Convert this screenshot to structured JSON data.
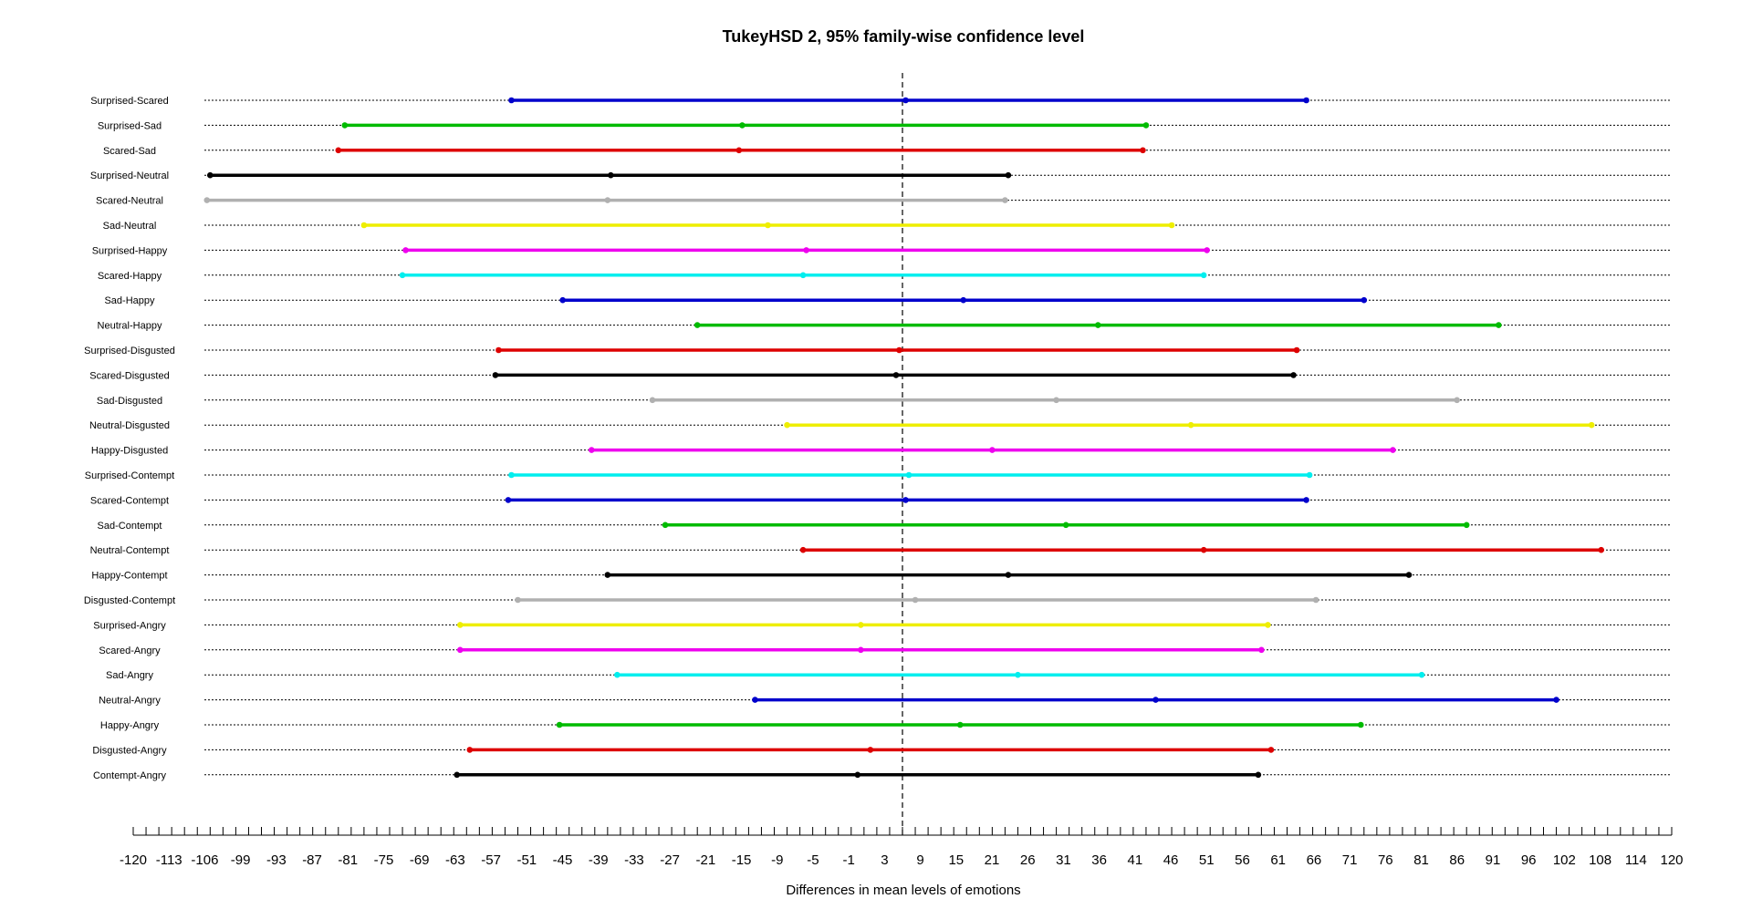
{
  "chart_data": {
    "type": "interval",
    "title": "TukeyHSD 2, 95% family-wise confidence level",
    "xlabel": "Differences in mean levels of emotions",
    "ylabel": "",
    "xlim": [
      -120,
      120
    ],
    "x_ticks": [
      "-120",
      "-113",
      "-106",
      "-99",
      "-93",
      "-87",
      "-81",
      "-75",
      "-69",
      "-63",
      "-57",
      "-51",
      "-45",
      "-39",
      "-33",
      "-27",
      "-21",
      "-15",
      "-9",
      "-5",
      "-1",
      "3",
      "9",
      "15",
      "21",
      "26",
      "31",
      "36",
      "41",
      "46",
      "51",
      "56",
      "61",
      "66",
      "71",
      "76",
      "81",
      "86",
      "91",
      "96",
      "102",
      "108",
      "114",
      "120"
    ],
    "reference_line": 0,
    "grid": true,
    "comparisons": [
      {
        "label": "Surprised-Scared",
        "lwr": -61,
        "diff": 0.5,
        "upr": 63,
        "color": "#0000cc"
      },
      {
        "label": "Surprised-Sad",
        "lwr": -87,
        "diff": -25,
        "upr": 38,
        "color": "#00bb00"
      },
      {
        "label": "Scared-Sad",
        "lwr": -88,
        "diff": -25.5,
        "upr": 37.5,
        "color": "#dd0000"
      },
      {
        "label": "Surprised-Neutral",
        "lwr": -108,
        "diff": -45.5,
        "upr": 16.5,
        "color": "#000000"
      },
      {
        "label": "Scared-Neutral",
        "lwr": -108.5,
        "diff": -46,
        "upr": 16,
        "color": "#b0b0b0"
      },
      {
        "label": "Sad-Neutral",
        "lwr": -84,
        "diff": -21,
        "upr": 42,
        "color": "#eeee00"
      },
      {
        "label": "Surprised-Happy",
        "lwr": -77.5,
        "diff": -15,
        "upr": 47.5,
        "color": "#ee00ee"
      },
      {
        "label": "Scared-Happy",
        "lwr": -78,
        "diff": -15.5,
        "upr": 47,
        "color": "#00eeee"
      },
      {
        "label": "Sad-Happy",
        "lwr": -53,
        "diff": 9.5,
        "upr": 72,
        "color": "#0000cc"
      },
      {
        "label": "Neutral-Happy",
        "lwr": -32,
        "diff": 30.5,
        "upr": 93,
        "color": "#00bb00"
      },
      {
        "label": "Surprised-Disgusted",
        "lwr": -63,
        "diff": -0.5,
        "upr": 61.5,
        "color": "#dd0000"
      },
      {
        "label": "Scared-Disgusted",
        "lwr": -63.5,
        "diff": -1,
        "upr": 61,
        "color": "#000000"
      },
      {
        "label": "Sad-Disgusted",
        "lwr": -39,
        "diff": 24,
        "upr": 86.5,
        "color": "#b0b0b0"
      },
      {
        "label": "Neutral-Disgusted",
        "lwr": -18,
        "diff": 45,
        "upr": 107.5,
        "color": "#eeee00"
      },
      {
        "label": "Happy-Disgusted",
        "lwr": -48.5,
        "diff": 14,
        "upr": 76.5,
        "color": "#ee00ee"
      },
      {
        "label": "Surprised-Contempt",
        "lwr": -61,
        "diff": 1,
        "upr": 63.5,
        "color": "#00eeee"
      },
      {
        "label": "Scared-Contempt",
        "lwr": -61.5,
        "diff": 0.5,
        "upr": 63,
        "color": "#0000cc"
      },
      {
        "label": "Sad-Contempt",
        "lwr": -37,
        "diff": 25.5,
        "upr": 88,
        "color": "#00bb00"
      },
      {
        "label": "Neutral-Contempt",
        "lwr": -15.5,
        "diff": 47,
        "upr": 109,
        "color": "#dd0000"
      },
      {
        "label": "Happy-Contempt",
        "lwr": -46,
        "diff": 16.5,
        "upr": 79,
        "color": "#000000"
      },
      {
        "label": "Disgusted-Contempt",
        "lwr": -60,
        "diff": 2,
        "upr": 64.5,
        "color": "#b0b0b0"
      },
      {
        "label": "Surprised-Angry",
        "lwr": -69,
        "diff": -6.5,
        "upr": 57,
        "color": "#eeee00"
      },
      {
        "label": "Scared-Angry",
        "lwr": -69,
        "diff": -6.5,
        "upr": 56,
        "color": "#ee00ee"
      },
      {
        "label": "Sad-Angry",
        "lwr": -44.5,
        "diff": 18,
        "upr": 81,
        "color": "#00eeee"
      },
      {
        "label": "Neutral-Angry",
        "lwr": -23,
        "diff": 39.5,
        "upr": 102,
        "color": "#0000cc"
      },
      {
        "label": "Happy-Angry",
        "lwr": -53.5,
        "diff": 9,
        "upr": 71.5,
        "color": "#00bb00"
      },
      {
        "label": "Disgusted-Angry",
        "lwr": -67.5,
        "diff": -5,
        "upr": 57.5,
        "color": "#dd0000"
      },
      {
        "label": "Contempt-Angry",
        "lwr": -69.5,
        "diff": -7,
        "upr": 55.5,
        "color": "#000000"
      }
    ]
  }
}
